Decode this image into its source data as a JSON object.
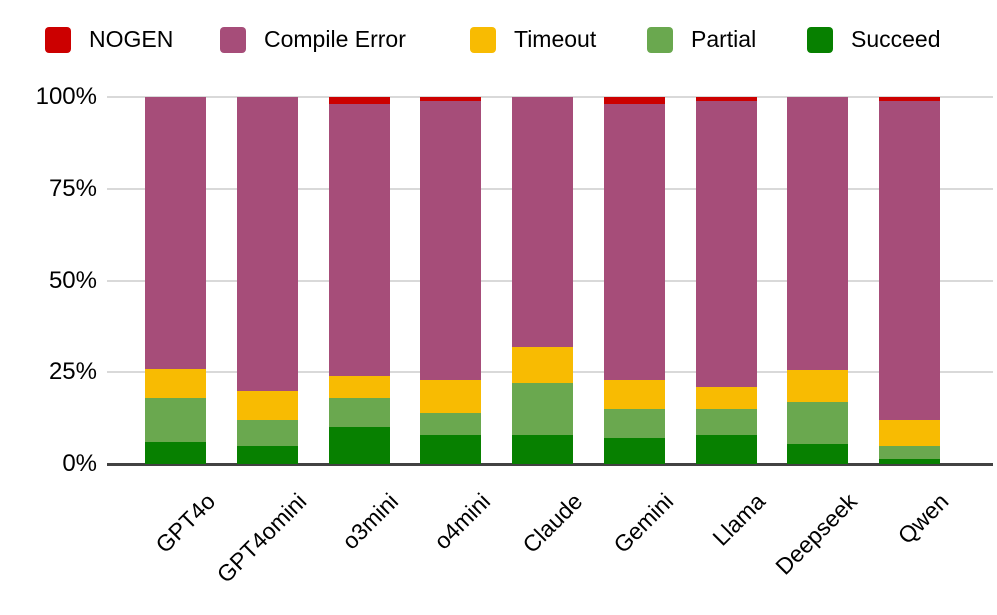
{
  "legend": {
    "position": "top",
    "items": [
      {
        "label": "NOGEN",
        "color": "#cc0000"
      },
      {
        "label": "Compile Error",
        "color": "#a64d79"
      },
      {
        "label": "Timeout",
        "color": "#f8bb02"
      },
      {
        "label": "Partial",
        "color": "#6aa84f"
      },
      {
        "label": "Succeed",
        "color": "#078000"
      }
    ]
  },
  "axis": {
    "y_ticks": [
      "100%",
      "75%",
      "50%",
      "25%",
      "0%"
    ],
    "gridline_color": "#d9d9d9",
    "baseline_color": "#424242"
  },
  "chart_data": {
    "type": "bar",
    "stacked": true,
    "title": "",
    "xlabel": "",
    "ylabel": "",
    "ylim": [
      0,
      100
    ],
    "y_tick_step": 25,
    "grid": true,
    "legend_position": "top",
    "categories": [
      "GPT4o",
      "GPT4omini",
      "o3mini",
      "o4mini",
      "Claude",
      "Gemini",
      "Llama",
      "Deepseek",
      "Qwen"
    ],
    "series": [
      {
        "name": "Succeed",
        "color": "#078000",
        "values": [
          6,
          5,
          10,
          8,
          8,
          7,
          8,
          5.5,
          1.5
        ]
      },
      {
        "name": "Partial",
        "color": "#6aa84f",
        "values": [
          12,
          7,
          8,
          6,
          14,
          8,
          7,
          11.5,
          3.5
        ]
      },
      {
        "name": "Timeout",
        "color": "#f8bb02",
        "values": [
          8,
          8,
          6,
          9,
          10,
          8,
          6,
          8.5,
          7
        ]
      },
      {
        "name": "Compile Error",
        "color": "#a64d79",
        "values": [
          74,
          80,
          74,
          76,
          68,
          75,
          78,
          74.5,
          87
        ]
      },
      {
        "name": "NOGEN",
        "color": "#cc0000",
        "values": [
          0,
          0,
          2,
          1,
          0,
          2,
          1,
          0,
          1
        ]
      }
    ]
  }
}
